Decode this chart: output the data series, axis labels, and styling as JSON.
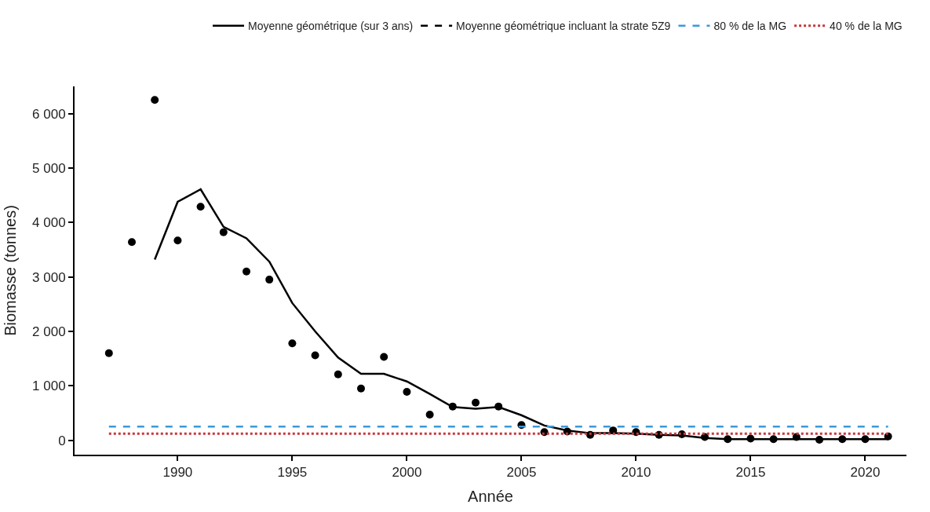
{
  "chart_data": {
    "type": "scatter",
    "xlabel": "Année",
    "ylabel": "Biomasse (tonnes)",
    "x": [
      1987,
      1988,
      1989,
      1990,
      1991,
      1992,
      1993,
      1994,
      1995,
      1996,
      1997,
      1998,
      1999,
      2000,
      2001,
      2002,
      2003,
      2004,
      2005,
      2006,
      2007,
      2008,
      2009,
      2010,
      2011,
      2012,
      2013,
      2014,
      2015,
      2016,
      2017,
      2018,
      2019,
      2020,
      2021
    ],
    "series": [
      {
        "color": "#000000",
        "marker": "circle",
        "values": [
          1600,
          3640,
          6250,
          3670,
          4290,
          3820,
          3100,
          2950,
          1780,
          1560,
          1210,
          950,
          1530,
          890,
          470,
          620,
          690,
          620,
          280,
          150,
          160,
          100,
          180,
          150,
          100,
          110,
          60,
          20,
          30,
          20,
          60,
          10,
          20,
          20,
          70
        ]
      },
      {
        "type": "line",
        "name": "Moyenne géométrique (sur 3 ans)",
        "color": "#000000",
        "line_style": "solid",
        "x": [
          1989,
          1990,
          1991,
          1992,
          1993,
          1994,
          1995,
          1996,
          1997,
          1998,
          1999,
          2000,
          2001,
          2002,
          2003,
          2004,
          2005,
          2006,
          2007,
          2008,
          2009,
          2010,
          2011,
          2012,
          2013,
          2014,
          2015,
          2016,
          2017,
          2018,
          2019,
          2020,
          2021
        ],
        "values": [
          3320,
          4380,
          4610,
          3920,
          3710,
          3280,
          2520,
          2000,
          1520,
          1220,
          1220,
          1080,
          850,
          610,
          580,
          610,
          460,
          270,
          180,
          130,
          130,
          120,
          100,
          90,
          40,
          20,
          20,
          20,
          20,
          20,
          20,
          20,
          20
        ]
      },
      {
        "type": "line",
        "name": "Moyenne géométrique incluant la strate 5Z9",
        "color": "#000000",
        "line_style": "dashed",
        "values": [
          null,
          null,
          null,
          null,
          null,
          null,
          null,
          null,
          null,
          null,
          null,
          null,
          null,
          null,
          null,
          null,
          null,
          null,
          null,
          null,
          null,
          null,
          null,
          null,
          null,
          null,
          null,
          null,
          null,
          null,
          null,
          null,
          null,
          null,
          null
        ]
      },
      {
        "type": "line",
        "name": "80 % de la MG",
        "color": "#3a9ad9",
        "line_style": "dashed",
        "x": [
          1987,
          2021
        ],
        "values": [
          250,
          250
        ]
      },
      {
        "type": "line",
        "name": "40 % de la MG",
        "color": "#c8373b",
        "line_style": "dotted",
        "x": [
          1987,
          2021
        ],
        "values": [
          120,
          120
        ]
      }
    ],
    "xlim": [
      1985.5,
      2021.8
    ],
    "xticks": [
      1990,
      1995,
      2000,
      2005,
      2010,
      2015,
      2020
    ],
    "ylim": [
      -265,
      6500
    ],
    "yticks": [
      {
        "value": 0,
        "label": "0"
      },
      {
        "value": 1000,
        "label": "1 000"
      },
      {
        "value": 2000,
        "label": "2 000"
      },
      {
        "value": 3000,
        "label": "3 000"
      },
      {
        "value": 4000,
        "label": "4 000"
      },
      {
        "value": 5000,
        "label": "5 000"
      },
      {
        "value": 6000,
        "label": "6 000"
      }
    ],
    "legend": "top"
  }
}
